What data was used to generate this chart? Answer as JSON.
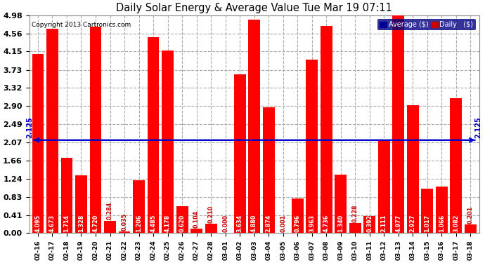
{
  "title": "Daily Solar Energy & Average Value Tue Mar 19 07:11",
  "copyright": "Copyright 2013 Cartronics.com",
  "categories": [
    "02-16",
    "02-17",
    "02-18",
    "02-19",
    "02-20",
    "02-21",
    "02-22",
    "02-23",
    "02-24",
    "02-25",
    "02-26",
    "02-27",
    "02-28",
    "03-01",
    "03-02",
    "03-03",
    "03-04",
    "03-05",
    "03-06",
    "03-07",
    "03-08",
    "03-09",
    "03-10",
    "03-11",
    "03-12",
    "03-13",
    "03-14",
    "03-15",
    "03-16",
    "03-17",
    "03-18"
  ],
  "values": [
    4.095,
    4.673,
    1.714,
    1.328,
    4.72,
    0.284,
    0.035,
    1.206,
    4.485,
    4.178,
    0.62,
    0.104,
    0.21,
    0.0,
    3.634,
    4.88,
    2.874,
    0.001,
    0.796,
    3.963,
    4.736,
    1.34,
    0.228,
    0.392,
    2.111,
    4.977,
    2.927,
    1.017,
    1.066,
    3.082,
    0.201
  ],
  "average": 2.125,
  "bar_color": "#ff0000",
  "avg_line_color": "#0000cc",
  "background_color": "#ffffff",
  "grid_color": "#aaaaaa",
  "yticks": [
    0.0,
    0.41,
    0.83,
    1.24,
    1.66,
    2.07,
    2.49,
    2.9,
    3.32,
    3.73,
    4.15,
    4.56,
    4.98
  ],
  "ymax": 4.98,
  "ymin": 0.0,
  "legend_avg_color": "#000099",
  "legend_daily_color": "#cc0000",
  "avg_label": "Average ($)",
  "daily_label": "Daily   ($)"
}
